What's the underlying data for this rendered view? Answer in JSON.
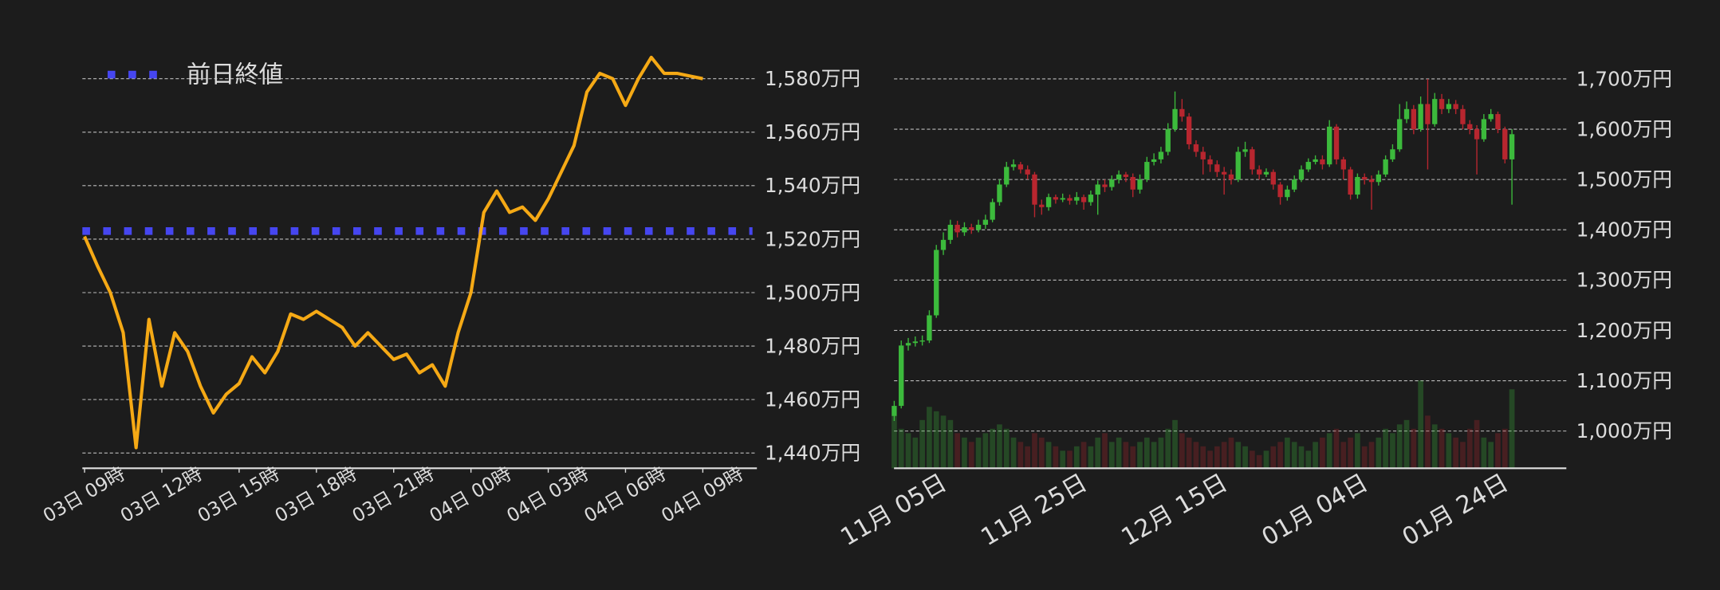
{
  "chart_data": [
    {
      "type": "line",
      "x": [
        0,
        0.5,
        1,
        1.5,
        2,
        2.5,
        3,
        3.5,
        4,
        4.5,
        5,
        5.5,
        6,
        6.5,
        7,
        7.5,
        8,
        8.5,
        9,
        9.5,
        10,
        10.5,
        11,
        11.5,
        12,
        12.5,
        13,
        13.5,
        14,
        14.5,
        15,
        15.5,
        16,
        16.5,
        17,
        17.5,
        18,
        18.5,
        19,
        19.5,
        20,
        20.5,
        21,
        21.5,
        22,
        22.5,
        23,
        23.5,
        24
      ],
      "values": [
        1521,
        1510,
        1500,
        1485,
        1442,
        1490,
        1465,
        1485,
        1478,
        1465,
        1455,
        1462,
        1466,
        1476,
        1470,
        1478,
        1492,
        1490,
        1493,
        1490,
        1487,
        1480,
        1485,
        1480,
        1475,
        1477,
        1470,
        1473,
        1465,
        1485,
        1500,
        1530,
        1538,
        1530,
        1532,
        1527,
        1535,
        1545,
        1555,
        1575,
        1582,
        1580,
        1570,
        1580,
        1588,
        1582,
        1582,
        1581,
        1580
      ],
      "color": "#f5a915",
      "reference_line": {
        "label": "前日終値",
        "value": 1523,
        "color": "#4646f0"
      },
      "xlim": [
        0,
        26.1
      ],
      "xticks": [
        {
          "value": 0,
          "label": "03日 09時"
        },
        {
          "value": 3,
          "label": "03日 12時"
        },
        {
          "value": 6,
          "label": "03日 15時"
        },
        {
          "value": 9,
          "label": "03日 18時"
        },
        {
          "value": 12,
          "label": "03日 21時"
        },
        {
          "value": 15,
          "label": "04日 00時"
        },
        {
          "value": 18,
          "label": "04日 03時"
        },
        {
          "value": 21,
          "label": "04日 06時"
        },
        {
          "value": 24,
          "label": "04日 09時"
        }
      ],
      "ylim": [
        1434.3,
        1600
      ],
      "yticks": [
        {
          "value": 1440,
          "label": "1,440万円"
        },
        {
          "value": 1460,
          "label": "1,460万円"
        },
        {
          "value": 1480,
          "label": "1,480万円"
        },
        {
          "value": 1500,
          "label": "1,500万円"
        },
        {
          "value": 1520,
          "label": "1,520万円"
        },
        {
          "value": 1540,
          "label": "1,540万円"
        },
        {
          "value": 1560,
          "label": "1,560万円"
        },
        {
          "value": 1580,
          "label": "1,580万円"
        }
      ],
      "grid": true
    },
    {
      "type": "candlestick",
      "categories": [
        "11月 05日",
        null,
        null,
        null,
        null,
        null,
        null,
        null,
        null,
        null,
        null,
        null,
        null,
        null,
        null,
        null,
        null,
        null,
        null,
        null,
        "11月 25日",
        null,
        null,
        null,
        null,
        null,
        null,
        null,
        null,
        null,
        null,
        null,
        null,
        null,
        null,
        null,
        null,
        null,
        null,
        null,
        "12月 15日",
        null,
        null,
        null,
        null,
        null,
        null,
        null,
        null,
        null,
        null,
        null,
        null,
        null,
        null,
        null,
        null,
        null,
        null,
        null,
        "01月 04日",
        null,
        null,
        null,
        null,
        null,
        null,
        null,
        null,
        null,
        null,
        null,
        null,
        null,
        null,
        null,
        null,
        null,
        null,
        null,
        "01月 24日",
        null,
        null,
        null,
        null,
        null,
        null,
        null,
        null
      ],
      "open": [
        1030,
        1050,
        1170,
        1175,
        1178,
        1180,
        1230,
        1360,
        1380,
        1410,
        1395,
        1405,
        1400,
        1410,
        1420,
        1455,
        1490,
        1525,
        1530,
        1520,
        1510,
        1450,
        1445,
        1465,
        1460,
        1463,
        1458,
        1465,
        1455,
        1470,
        1490,
        1485,
        1500,
        1510,
        1505,
        1480,
        1500,
        1535,
        1540,
        1555,
        1600,
        1640,
        1625,
        1570,
        1555,
        1540,
        1530,
        1515,
        1510,
        1500,
        1555,
        1560,
        1520,
        1510,
        1515,
        1490,
        1465,
        1480,
        1500,
        1520,
        1535,
        1540,
        1530,
        1605,
        1540,
        1520,
        1470,
        1505,
        1500,
        1495,
        1510,
        1540,
        1560,
        1620,
        1640,
        1600,
        1650,
        1610,
        1660,
        1640,
        1650,
        1640,
        1610,
        1600,
        1580,
        1620,
        1630,
        1600,
        1540
      ],
      "high": [
        1060,
        1180,
        1185,
        1188,
        1190,
        1240,
        1370,
        1395,
        1420,
        1418,
        1415,
        1412,
        1420,
        1430,
        1462,
        1500,
        1535,
        1540,
        1535,
        1528,
        1515,
        1460,
        1472,
        1470,
        1472,
        1470,
        1475,
        1470,
        1478,
        1498,
        1500,
        1508,
        1518,
        1515,
        1512,
        1510,
        1545,
        1552,
        1565,
        1612,
        1675,
        1660,
        1632,
        1578,
        1565,
        1548,
        1538,
        1525,
        1520,
        1565,
        1575,
        1565,
        1528,
        1522,
        1520,
        1495,
        1488,
        1508,
        1528,
        1542,
        1548,
        1548,
        1618,
        1610,
        1545,
        1525,
        1512,
        1512,
        1508,
        1518,
        1548,
        1570,
        1650,
        1655,
        1648,
        1665,
        1700,
        1672,
        1670,
        1660,
        1658,
        1648,
        1618,
        1608,
        1630,
        1640,
        1635,
        1605,
        1600
      ],
      "low": [
        1020,
        1045,
        1160,
        1168,
        1170,
        1175,
        1225,
        1350,
        1372,
        1385,
        1388,
        1392,
        1395,
        1402,
        1415,
        1448,
        1485,
        1518,
        1512,
        1500,
        1425,
        1430,
        1438,
        1452,
        1455,
        1450,
        1450,
        1440,
        1448,
        1430,
        1475,
        1478,
        1492,
        1495,
        1465,
        1472,
        1495,
        1528,
        1532,
        1548,
        1595,
        1615,
        1560,
        1545,
        1510,
        1515,
        1505,
        1470,
        1490,
        1495,
        1545,
        1510,
        1500,
        1505,
        1480,
        1450,
        1458,
        1475,
        1495,
        1515,
        1530,
        1520,
        1525,
        1530,
        1500,
        1460,
        1462,
        1490,
        1440,
        1488,
        1505,
        1535,
        1555,
        1612,
        1590,
        1595,
        1520,
        1605,
        1630,
        1632,
        1630,
        1600,
        1590,
        1510,
        1575,
        1615,
        1592,
        1532,
        1450
      ],
      "close": [
        1050,
        1170,
        1175,
        1178,
        1180,
        1230,
        1360,
        1380,
        1410,
        1395,
        1405,
        1400,
        1410,
        1420,
        1455,
        1490,
        1525,
        1530,
        1520,
        1510,
        1450,
        1445,
        1465,
        1460,
        1463,
        1458,
        1465,
        1455,
        1470,
        1490,
        1485,
        1500,
        1510,
        1505,
        1480,
        1500,
        1535,
        1540,
        1555,
        1600,
        1640,
        1625,
        1570,
        1555,
        1540,
        1530,
        1515,
        1510,
        1500,
        1555,
        1560,
        1520,
        1510,
        1515,
        1490,
        1465,
        1480,
        1500,
        1520,
        1535,
        1540,
        1530,
        1605,
        1540,
        1520,
        1470,
        1505,
        1500,
        1495,
        1510,
        1540,
        1560,
        1620,
        1640,
        1600,
        1650,
        1610,
        1660,
        1640,
        1650,
        1640,
        1610,
        1600,
        1580,
        1620,
        1630,
        1600,
        1540,
        1590
      ],
      "volume": [
        60,
        45,
        40,
        35,
        55,
        70,
        65,
        60,
        55,
        40,
        35,
        30,
        35,
        40,
        45,
        50,
        45,
        35,
        30,
        25,
        40,
        35,
        30,
        25,
        20,
        20,
        25,
        30,
        25,
        35,
        40,
        30,
        35,
        30,
        25,
        30,
        35,
        30,
        35,
        45,
        55,
        40,
        35,
        30,
        25,
        20,
        25,
        30,
        35,
        30,
        25,
        20,
        15,
        20,
        25,
        30,
        35,
        30,
        25,
        20,
        30,
        35,
        40,
        45,
        30,
        35,
        40,
        25,
        30,
        35,
        45,
        40,
        50,
        55,
        45,
        100,
        60,
        50,
        45,
        40,
        35,
        30,
        45,
        55,
        35,
        30,
        40,
        45,
        90
      ],
      "up_color": "#3cba3c",
      "down_color": "#b8262f",
      "ylim": [
        926,
        1726
      ],
      "yticks": [
        {
          "value": 1000,
          "label": "1,000万円"
        },
        {
          "value": 1100,
          "label": "1,100万円"
        },
        {
          "value": 1200,
          "label": "1,200万円"
        },
        {
          "value": 1300,
          "label": "1,300万円"
        },
        {
          "value": 1400,
          "label": "1,400万円"
        },
        {
          "value": 1500,
          "label": "1,500万円"
        },
        {
          "value": 1600,
          "label": "1,600万円"
        },
        {
          "value": 1700,
          "label": "1,700万円"
        }
      ],
      "grid": true
    }
  ]
}
